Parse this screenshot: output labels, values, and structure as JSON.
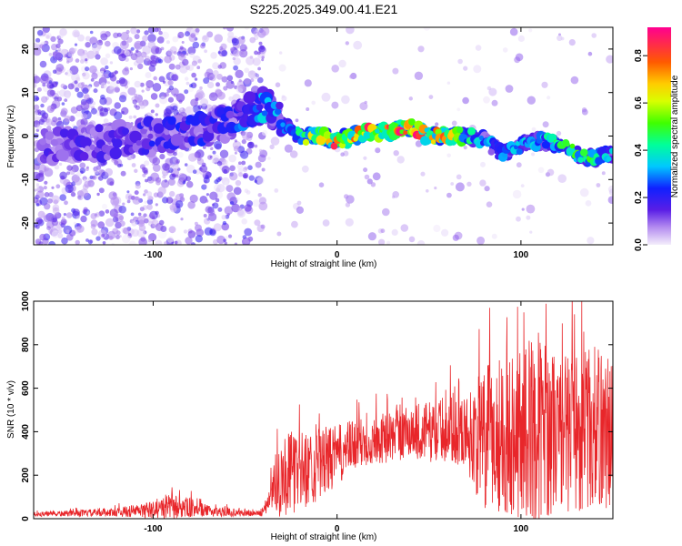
{
  "title": "S225.2025.349.00.41.E21",
  "chart_data": [
    {
      "type": "heatmap",
      "xlabel": "Height of straight line (km)",
      "ylabel": "Frequency (Hz)",
      "xlim": [
        -165,
        150
      ],
      "ylim": [
        -25,
        25
      ],
      "xticks": [
        "-100",
        "0",
        "100"
      ],
      "xtick_values": [
        -100,
        0,
        100
      ],
      "yticks": [
        "20",
        "10",
        "0",
        "-10",
        "-20"
      ],
      "ytick_values": [
        20,
        10,
        0,
        -10,
        -20
      ],
      "colorbar": {
        "label": "Normalized spectral amplitude",
        "range": [
          0,
          0.92
        ],
        "ticks": [
          "0.0",
          "0.2",
          "0.4",
          "0.6",
          "0.8"
        ],
        "tick_values": [
          0,
          0.2,
          0.4,
          0.6,
          0.8
        ]
      },
      "ridge": {
        "x": [
          -135,
          -120,
          -100,
          -80,
          -60,
          -45,
          -38,
          -30,
          -20,
          -10,
          0,
          10,
          20,
          30,
          40,
          50,
          60,
          70,
          80,
          90,
          100,
          110,
          120,
          130,
          140,
          150
        ],
        "freq": [
          -2,
          -1,
          0,
          1,
          3,
          6,
          7,
          3,
          0,
          0,
          -1,
          0,
          1,
          1,
          2,
          0,
          0,
          0,
          -1,
          -4,
          -2,
          -1,
          -2,
          -4,
          -5,
          -4
        ],
        "amplitude": [
          0.15,
          0.15,
          0.18,
          0.2,
          0.18,
          0.3,
          0.3,
          0.28,
          0.45,
          0.6,
          0.7,
          0.7,
          0.7,
          0.75,
          0.8,
          0.6,
          0.7,
          0.45,
          0.3,
          0.3,
          0.3,
          0.3,
          0.4,
          0.45,
          0.4,
          0.3
        ]
      }
    },
    {
      "type": "line",
      "xlabel": "Height of straight line (km)",
      "ylabel": "SNR (10 * v/v)",
      "xlim": [
        -165,
        150
      ],
      "ylim": [
        0,
        1000
      ],
      "xticks": [
        "-100",
        "0",
        "100"
      ],
      "xtick_values": [
        -100,
        0,
        100
      ],
      "yticks": [
        "0",
        "200",
        "400",
        "600",
        "800",
        "1000"
      ],
      "ytick_values": [
        0,
        200,
        400,
        600,
        800,
        1000
      ],
      "series": [
        {
          "color": "#e8262a",
          "envelope": {
            "x": [
              -165,
              -140,
              -120,
              -100,
              -90,
              -80,
              -70,
              -60,
              -50,
              -40,
              -35,
              -30,
              -20,
              -10,
              0,
              10,
              20,
              30,
              40,
              50,
              60,
              70,
              80,
              90,
              100,
              110,
              120,
              130,
              140,
              150
            ],
            "base": [
              20,
              25,
              30,
              40,
              55,
              50,
              35,
              30,
              25,
              25,
              150,
              200,
              220,
              250,
              290,
              340,
              360,
              380,
              400,
              400,
              410,
              400,
              350,
              400,
              400,
              420,
              400,
              400,
              420,
              400
            ],
            "spread": [
              10,
              15,
              20,
              40,
              60,
              45,
              25,
              20,
              15,
              15,
              120,
              200,
              180,
              170,
              140,
              120,
              110,
              120,
              130,
              140,
              150,
              160,
              350,
              380,
              400,
              450,
              350,
              380,
              380,
              360
            ]
          }
        }
      ]
    }
  ]
}
